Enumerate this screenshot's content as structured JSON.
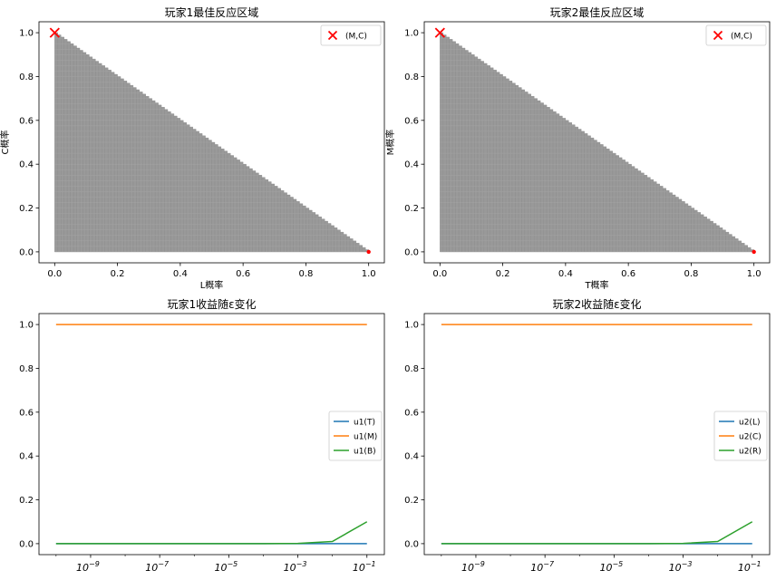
{
  "chart_data": [
    {
      "type": "scatter",
      "title": "玩家1最佳反应区域",
      "xlabel": "L概率",
      "ylabel": "C概率",
      "xlim": [
        -0.05,
        1.05
      ],
      "ylim": [
        -0.05,
        1.05
      ],
      "xticks": [
        0.0,
        0.2,
        0.4,
        0.6,
        0.8,
        1.0
      ],
      "yticks": [
        0.0,
        0.2,
        0.4,
        0.6,
        0.8,
        1.0
      ],
      "xtick_labels": [
        "0.0",
        "0.2",
        "0.4",
        "0.6",
        "0.8",
        "1.0"
      ],
      "ytick_labels": [
        "0.0",
        "0.2",
        "0.4",
        "0.6",
        "0.8",
        "1.0"
      ],
      "region": {
        "description_of_data": "best response region: x >= 0, y >= 0, x + y <= 1",
        "vertices": [
          [
            0,
            0
          ],
          [
            0,
            1
          ],
          [
            1,
            0
          ]
        ],
        "color": "#999999"
      },
      "markers": [
        {
          "name": "(M,C)",
          "x": 0.0,
          "y": 1.0,
          "marker": "x",
          "color": "#ff0000"
        },
        {
          "x": 1.0,
          "y": 0.0,
          "marker": "dot",
          "color": "#ff0000"
        }
      ],
      "legend": {
        "position": "upper-right",
        "entries": [
          "(M,C)"
        ]
      },
      "grid": false
    },
    {
      "type": "scatter",
      "title": "玩家2最佳反应区域",
      "xlabel": "T概率",
      "ylabel": "M概率",
      "xlim": [
        -0.05,
        1.05
      ],
      "ylim": [
        -0.05,
        1.05
      ],
      "xticks": [
        0.0,
        0.2,
        0.4,
        0.6,
        0.8,
        1.0
      ],
      "yticks": [
        0.0,
        0.2,
        0.4,
        0.6,
        0.8,
        1.0
      ],
      "xtick_labels": [
        "0.0",
        "0.2",
        "0.4",
        "0.6",
        "0.8",
        "1.0"
      ],
      "ytick_labels": [
        "0.0",
        "0.2",
        "0.4",
        "0.6",
        "0.8",
        "1.0"
      ],
      "region": {
        "vertices": [
          [
            0,
            0
          ],
          [
            0,
            1
          ],
          [
            1,
            0
          ]
        ],
        "color": "#999999"
      },
      "markers": [
        {
          "name": "(M,C)",
          "x": 0.0,
          "y": 1.0,
          "marker": "x",
          "color": "#ff0000"
        },
        {
          "x": 1.0,
          "y": 0.0,
          "marker": "dot",
          "color": "#ff0000"
        }
      ],
      "legend": {
        "position": "upper-right",
        "entries": [
          "(M,C)"
        ]
      },
      "grid": false
    },
    {
      "type": "line",
      "title": "玩家1收益随ε变化",
      "x_scale": "log",
      "x": [
        1e-10,
        1e-09,
        1e-08,
        1e-07,
        1e-06,
        1e-05,
        0.0001,
        0.001,
        0.01,
        0.1
      ],
      "xlim": [
        3.2e-11,
        0.32
      ],
      "ylim": [
        -0.05,
        1.05
      ],
      "xticks": [
        1e-09,
        1e-07,
        1e-05,
        0.001,
        0.1
      ],
      "xtick_labels": [
        {
          "base": "10",
          "exp": "−9"
        },
        {
          "base": "10",
          "exp": "−7"
        },
        {
          "base": "10",
          "exp": "−5"
        },
        {
          "base": "10",
          "exp": "−3"
        },
        {
          "base": "10",
          "exp": "−1"
        }
      ],
      "yticks": [
        0.0,
        0.2,
        0.4,
        0.6,
        0.8,
        1.0
      ],
      "ytick_labels": [
        "0.0",
        "0.2",
        "0.4",
        "0.6",
        "0.8",
        "1.0"
      ],
      "series": [
        {
          "name": "u1(T)",
          "color": "#1f77b4",
          "values": [
            0,
            0,
            0,
            0,
            0,
            0,
            0,
            0,
            0,
            0
          ]
        },
        {
          "name": "u1(M)",
          "color": "#ff7f0e",
          "values": [
            1,
            1,
            1,
            1,
            1,
            1,
            1,
            1,
            1,
            1
          ]
        },
        {
          "name": "u1(B)",
          "color": "#2ca02c",
          "values": [
            0,
            0,
            0,
            0,
            0,
            0,
            0.0001,
            0.001,
            0.01,
            0.1
          ]
        }
      ],
      "legend": {
        "position": "center-right"
      },
      "grid": false
    },
    {
      "type": "line",
      "title": "玩家2收益随ε变化",
      "x_scale": "log",
      "x": [
        1e-10,
        1e-09,
        1e-08,
        1e-07,
        1e-06,
        1e-05,
        0.0001,
        0.001,
        0.01,
        0.1
      ],
      "xlim": [
        3.2e-11,
        0.32
      ],
      "ylim": [
        -0.05,
        1.05
      ],
      "xticks": [
        1e-09,
        1e-07,
        1e-05,
        0.001,
        0.1
      ],
      "xtick_labels": [
        {
          "base": "10",
          "exp": "−9"
        },
        {
          "base": "10",
          "exp": "−7"
        },
        {
          "base": "10",
          "exp": "−5"
        },
        {
          "base": "10",
          "exp": "−3"
        },
        {
          "base": "10",
          "exp": "−1"
        }
      ],
      "yticks": [
        0.0,
        0.2,
        0.4,
        0.6,
        0.8,
        1.0
      ],
      "ytick_labels": [
        "0.0",
        "0.2",
        "0.4",
        "0.6",
        "0.8",
        "1.0"
      ],
      "series": [
        {
          "name": "u2(L)",
          "color": "#1f77b4",
          "values": [
            0,
            0,
            0,
            0,
            0,
            0,
            0,
            0,
            0,
            0
          ]
        },
        {
          "name": "u2(C)",
          "color": "#ff7f0e",
          "values": [
            1,
            1,
            1,
            1,
            1,
            1,
            1,
            1,
            1,
            1
          ]
        },
        {
          "name": "u2(R)",
          "color": "#2ca02c",
          "values": [
            0,
            0,
            0,
            0,
            0,
            0,
            0.0001,
            0.001,
            0.01,
            0.1
          ]
        }
      ],
      "legend": {
        "position": "center-right"
      },
      "grid": false
    }
  ]
}
